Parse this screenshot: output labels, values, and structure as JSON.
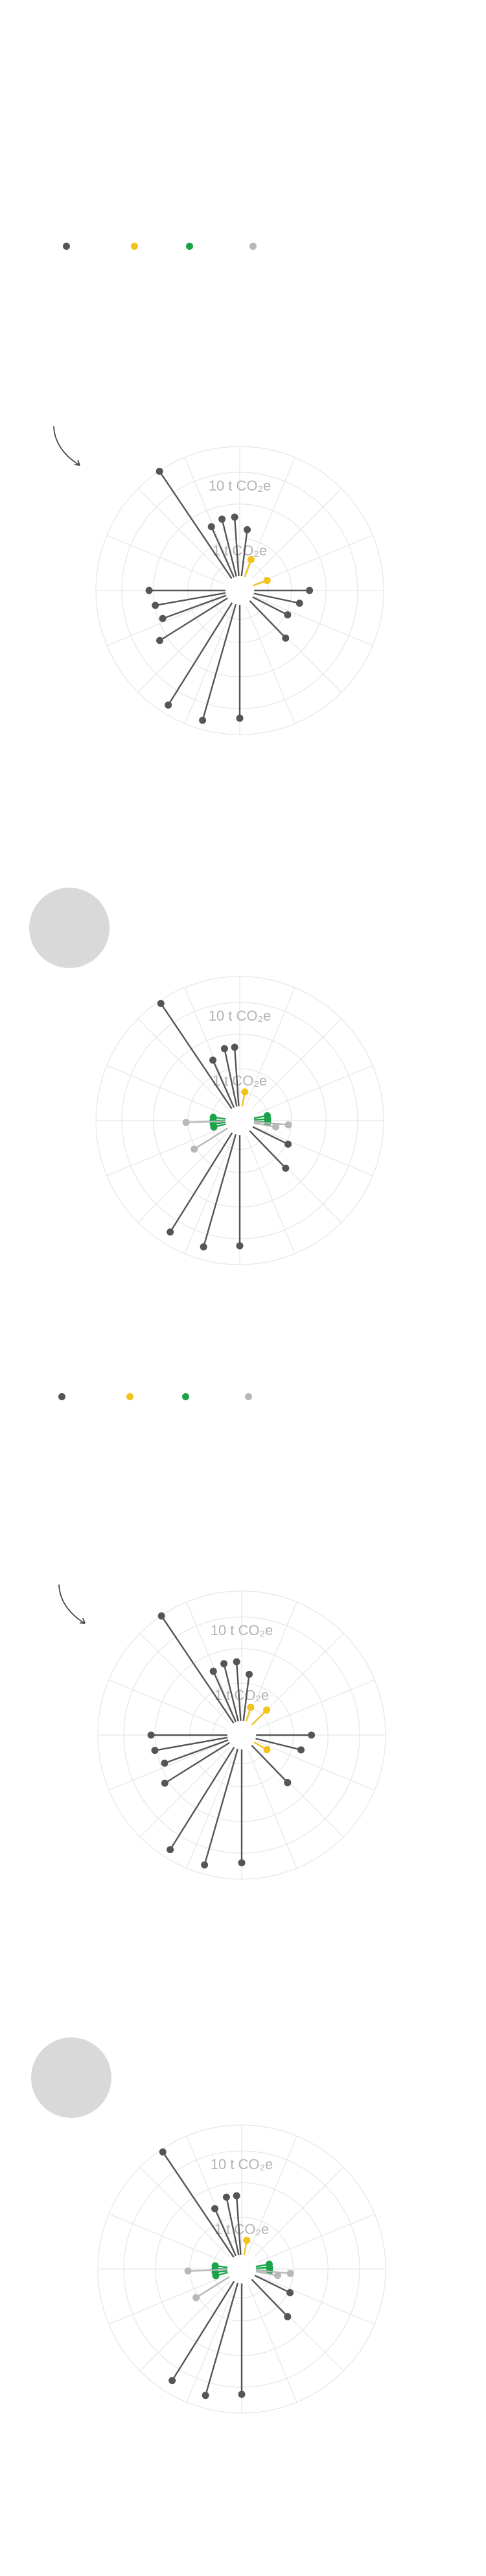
{
  "colors": {
    "emitter": "#555555",
    "absorber_yellow": "#f2c318",
    "green": "#1aa34a",
    "light": "#b8b8b8",
    "grid": "#e6e6e6",
    "placeholder": "#d9d9d9"
  },
  "legend": [
    {
      "color": "#555555"
    },
    {
      "color": "#f2c318"
    },
    {
      "color": "#1aa34a"
    },
    {
      "color": "#b8b8b8"
    }
  ],
  "icons": {
    "arrow": "curved-arrow-icon",
    "placeholder": "image-placeholder-icon"
  },
  "chart_data": [
    {
      "type": "radial-lollipop",
      "rings": {
        "outer_label": "10 t CO₂e",
        "inner_label": "1 t CO₂e"
      },
      "spokes": [
        {
          "angle": -34,
          "r": 1.05,
          "color": "emitter"
        },
        {
          "angle": -24,
          "r": 0.45,
          "color": "emitter"
        },
        {
          "angle": -14,
          "r": 0.48,
          "color": "emitter"
        },
        {
          "angle": -4,
          "r": 0.48,
          "color": "emitter"
        },
        {
          "angle": 7,
          "r": 0.38,
          "color": "emitter"
        },
        {
          "angle": 20,
          "r": 0.15,
          "color": "yellow"
        },
        {
          "angle": 70,
          "r": 0.12,
          "color": "yellow"
        },
        {
          "angle": 90,
          "r": 0.45,
          "color": "emitter"
        },
        {
          "angle": 102,
          "r": 0.38,
          "color": "emitter"
        },
        {
          "angle": 117,
          "r": 0.32,
          "color": "emitter"
        },
        {
          "angle": 136,
          "r": 0.42,
          "color": "emitter"
        },
        {
          "angle": 180,
          "r": 0.92,
          "color": "emitter"
        },
        {
          "angle": 196,
          "r": 0.98,
          "color": "emitter"
        },
        {
          "angle": 212,
          "r": 0.98,
          "color": "emitter"
        },
        {
          "angle": 238,
          "r": 0.65,
          "color": "emitter"
        },
        {
          "angle": 250,
          "r": 0.55,
          "color": "emitter"
        },
        {
          "angle": 260,
          "r": 0.58,
          "color": "emitter"
        },
        {
          "angle": 270,
          "r": 0.62,
          "color": "emitter"
        }
      ]
    },
    {
      "type": "radial-lollipop",
      "rings": {
        "outer_label": "10 t CO₂e",
        "inner_label": "1 t CO₂e"
      },
      "spokes": [
        {
          "angle": -34,
          "r": 1.03,
          "color": "emitter"
        },
        {
          "angle": -24,
          "r": 0.42,
          "color": "emitter"
        },
        {
          "angle": -12,
          "r": 0.48,
          "color": "emitter"
        },
        {
          "angle": -4,
          "r": 0.48,
          "color": "emitter"
        },
        {
          "angle": 10,
          "r": 0.12,
          "color": "yellow"
        },
        {
          "angle": 80,
          "r": 0.11,
          "color": "green"
        },
        {
          "angle": 87,
          "r": 0.11,
          "color": "green"
        },
        {
          "angle": 94,
          "r": 0.11,
          "color": "green"
        },
        {
          "angle": 100,
          "r": 0.18,
          "color": "light"
        },
        {
          "angle": 116,
          "r": 0.32,
          "color": "emitter"
        },
        {
          "angle": 136,
          "r": 0.42,
          "color": "emitter"
        },
        {
          "angle": 180,
          "r": 0.9,
          "color": "emitter"
        },
        {
          "angle": 196,
          "r": 0.95,
          "color": "emitter"
        },
        {
          "angle": 212,
          "r": 0.95,
          "color": "emitter"
        },
        {
          "angle": 238,
          "r": 0.32,
          "color": "light"
        },
        {
          "angle": 256,
          "r": 0.1,
          "color": "green"
        },
        {
          "angle": 263,
          "r": 0.1,
          "color": "green"
        },
        {
          "angle": 270,
          "r": 0.1,
          "color": "green"
        },
        {
          "angle": 277,
          "r": 0.1,
          "color": "green"
        },
        {
          "angle": 268,
          "r": 0.32,
          "color": "light"
        },
        {
          "angle": 95,
          "r": 0.28,
          "color": "light"
        }
      ]
    },
    {
      "type": "radial-lollipop",
      "rings": {
        "outer_label": "10 t CO₂e",
        "inner_label": "1 t CO₂e"
      },
      "spokes": [
        {
          "angle": -34,
          "r": 1.05,
          "color": "emitter"
        },
        {
          "angle": -24,
          "r": 0.45,
          "color": "emitter"
        },
        {
          "angle": -14,
          "r": 0.48,
          "color": "emitter"
        },
        {
          "angle": -4,
          "r": 0.48,
          "color": "emitter"
        },
        {
          "angle": 7,
          "r": 0.38,
          "color": "emitter"
        },
        {
          "angle": 18,
          "r": 0.12,
          "color": "yellow"
        },
        {
          "angle": 45,
          "r": 0.17,
          "color": "yellow"
        },
        {
          "angle": 90,
          "r": 0.45,
          "color": "emitter"
        },
        {
          "angle": 120,
          "r": 0.12,
          "color": "yellow"
        },
        {
          "angle": 104,
          "r": 0.38,
          "color": "emitter"
        },
        {
          "angle": 136,
          "r": 0.42,
          "color": "emitter"
        },
        {
          "angle": 180,
          "r": 0.92,
          "color": "emitter"
        },
        {
          "angle": 196,
          "r": 0.98,
          "color": "emitter"
        },
        {
          "angle": 212,
          "r": 0.98,
          "color": "emitter"
        },
        {
          "angle": 238,
          "r": 0.62,
          "color": "emitter"
        },
        {
          "angle": 250,
          "r": 0.55,
          "color": "emitter"
        },
        {
          "angle": 260,
          "r": 0.6,
          "color": "emitter"
        },
        {
          "angle": 270,
          "r": 0.62,
          "color": "emitter"
        }
      ]
    },
    {
      "type": "radial-lollipop",
      "rings": {
        "outer_label": "10 t CO₂e",
        "inner_label": "1 t CO₂e"
      },
      "spokes": [
        {
          "angle": -34,
          "r": 1.03,
          "color": "emitter"
        },
        {
          "angle": -24,
          "r": 0.42,
          "color": "emitter"
        },
        {
          "angle": -12,
          "r": 0.48,
          "color": "emitter"
        },
        {
          "angle": -4,
          "r": 0.48,
          "color": "emitter"
        },
        {
          "angle": 10,
          "r": 0.12,
          "color": "yellow"
        },
        {
          "angle": 80,
          "r": 0.11,
          "color": "green"
        },
        {
          "angle": 87,
          "r": 0.11,
          "color": "green"
        },
        {
          "angle": 94,
          "r": 0.11,
          "color": "green"
        },
        {
          "angle": 100,
          "r": 0.18,
          "color": "light"
        },
        {
          "angle": 116,
          "r": 0.32,
          "color": "emitter"
        },
        {
          "angle": 136,
          "r": 0.42,
          "color": "emitter"
        },
        {
          "angle": 180,
          "r": 0.9,
          "color": "emitter"
        },
        {
          "angle": 196,
          "r": 0.95,
          "color": "emitter"
        },
        {
          "angle": 212,
          "r": 0.95,
          "color": "emitter"
        },
        {
          "angle": 238,
          "r": 0.32,
          "color": "light"
        },
        {
          "angle": 256,
          "r": 0.1,
          "color": "green"
        },
        {
          "angle": 263,
          "r": 0.1,
          "color": "green"
        },
        {
          "angle": 270,
          "r": 0.1,
          "color": "green"
        },
        {
          "angle": 277,
          "r": 0.1,
          "color": "green"
        },
        {
          "angle": 268,
          "r": 0.32,
          "color": "light"
        },
        {
          "angle": 95,
          "r": 0.28,
          "color": "light"
        }
      ]
    }
  ]
}
